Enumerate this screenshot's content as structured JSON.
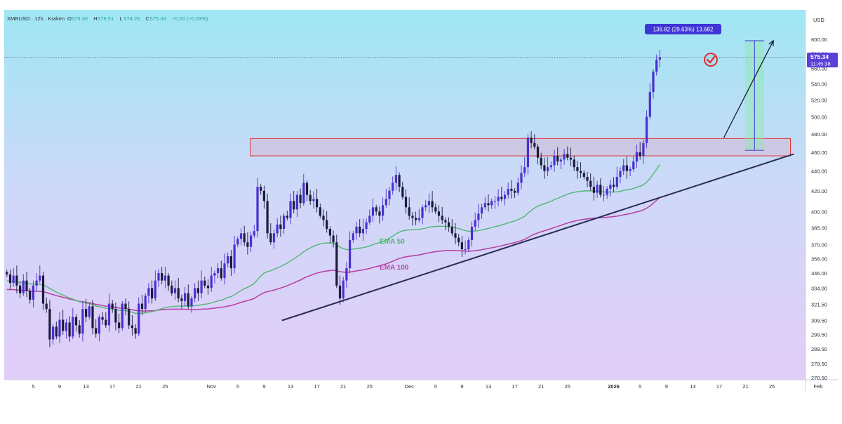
{
  "header": {
    "symbol": "XMRUSD · 12h · Kraken",
    "ohlc": [
      {
        "label": "O",
        "value": "575.30"
      },
      {
        "label": "H",
        "value": "579.51"
      },
      {
        "label": "L",
        "value": "574.26"
      },
      {
        "label": "C",
        "value": "575.34"
      },
      {
        "label": "",
        "value": "−0.20 (−0.03%)"
      }
    ]
  },
  "price_tag": {
    "price": "575.34",
    "countdown": "11:45:38"
  },
  "measure": {
    "label": "136.82 (29.63%) 13,682"
  },
  "annotations": {
    "ema50": "EMA 50",
    "ema100": "EMA 100"
  },
  "colors": {
    "bull": "#4a2fd0",
    "bear": "#1a1a3a",
    "ema50": "#4fb873",
    "ema100": "#b845a8",
    "trendline": "#2b2b55",
    "zone_border": "#e03131",
    "measure": "#3f35d6",
    "check": "#e03131"
  },
  "chart_data": {
    "type": "candlestick",
    "title": "",
    "currency": "USD",
    "y_axis_ticks": [
      "600.00",
      "580.00",
      "560.00",
      "540.00",
      "520.00",
      "500.00",
      "480.00",
      "460.00",
      "440.00",
      "420.00",
      "400.00",
      "385.00",
      "370.00",
      "358.00",
      "346.00",
      "334.00",
      "321.50",
      "309.50",
      "299.50",
      "289.50",
      "279.50",
      "270.50"
    ],
    "y_scale": "log",
    "ylim": [
      270.5,
      610
    ],
    "x_axis_labels": [
      "5",
      "9",
      "13",
      "17",
      "21",
      "25",
      "Nov",
      "5",
      "9",
      "13",
      "17",
      "21",
      "25",
      "Dec",
      "5",
      "9",
      "13",
      "17",
      "21",
      "25",
      "2026",
      "5",
      "9",
      "13",
      "17",
      "21",
      "25",
      "Feb"
    ],
    "x_label_day_index": [
      4,
      8,
      12,
      16,
      20,
      24,
      31,
      35,
      39,
      43,
      47,
      51,
      55,
      61,
      65,
      69,
      73,
      77,
      81,
      85,
      92,
      96,
      100,
      104,
      108,
      112,
      116,
      123
    ],
    "candles_note": "approx 12h candles from early Oct 2025 to mid Jan 2026",
    "closes": [
      345,
      338,
      344,
      336,
      330,
      340,
      332,
      325,
      336,
      340,
      344,
      322,
      318,
      296,
      305,
      298,
      310,
      302,
      308,
      298,
      312,
      306,
      300,
      318,
      312,
      320,
      304,
      300,
      312,
      310,
      306,
      322,
      318,
      308,
      304,
      322,
      318,
      306,
      304,
      300,
      322,
      318,
      328,
      334,
      326,
      340,
      346,
      340,
      344,
      336,
      330,
      334,
      326,
      324,
      330,
      320,
      326,
      334,
      330,
      340,
      336,
      334,
      344,
      346,
      350,
      342,
      354,
      360,
      350,
      370,
      375,
      380,
      372,
      368,
      378,
      382,
      424,
      420,
      410,
      380,
      372,
      380,
      388,
      384,
      396,
      394,
      410,
      402,
      416,
      408,
      428,
      416,
      410,
      412,
      404,
      396,
      392,
      384,
      378,
      372,
      336,
      326,
      340,
      350,
      374,
      380,
      386,
      380,
      384,
      390,
      396,
      404,
      400,
      396,
      406,
      412,
      420,
      428,
      436,
      424,
      414,
      404,
      396,
      394,
      392,
      394,
      404,
      406,
      410,
      404,
      400,
      396,
      392,
      390,
      386,
      380,
      376,
      372,
      366,
      366,
      374,
      386,
      392,
      398,
      404,
      408,
      406,
      410,
      410,
      414,
      412,
      416,
      422,
      420,
      418,
      428,
      438,
      444,
      476,
      470,
      466,
      454,
      446,
      440,
      444,
      446,
      456,
      450,
      452,
      458,
      454,
      452,
      444,
      440,
      438,
      434,
      430,
      424,
      418,
      426,
      416,
      416,
      422,
      426,
      424,
      434,
      440,
      446,
      440,
      442,
      450,
      460,
      456,
      470,
      500,
      530,
      556,
      572,
      575
    ],
    "ema50": {
      "start_price": 288,
      "end_price": 455
    },
    "ema100": {
      "start_price": 280,
      "end_price": 432
    },
    "trendline": {
      "start": {
        "day": 41.7,
        "price": 309.5
      },
      "end": {
        "day": 119.3,
        "price": 458
      }
    },
    "resistance_zone": {
      "day_from": 36.9,
      "day_to": 118.8,
      "price_low": 456,
      "price_high": 475
    },
    "measure_box": {
      "day_from": 111.9,
      "day_to": 114.8,
      "price_low": 462,
      "price_high": 598,
      "change": 136.82,
      "change_pct": 29.63
    },
    "arrow": {
      "from": {
        "day": 108.7,
        "price": 476
      },
      "to": {
        "day": 116.2,
        "price": 598
      }
    },
    "last_price": 575.34
  }
}
